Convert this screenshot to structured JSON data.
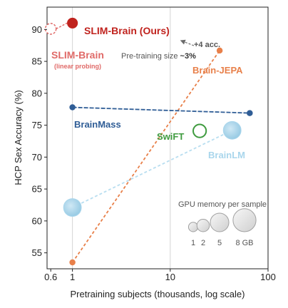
{
  "chart_data": {
    "type": "scatter",
    "xlabel": "Pretraining subjects (thousands, log scale)",
    "ylabel": "HCP Sex Accuracy (%)",
    "x_scale": "log",
    "xlim": [
      0.55,
      100
    ],
    "ylim": [
      52.5,
      93.5
    ],
    "x_ticks": [
      {
        "value": 0.6,
        "label": "0.6"
      },
      {
        "value": 1,
        "label": "1"
      },
      {
        "value": 10,
        "label": "10"
      },
      {
        "value": 100,
        "label": "100"
      }
    ],
    "y_ticks": [
      55,
      60,
      65,
      70,
      75,
      80,
      85,
      90
    ],
    "grid": "vertical",
    "series": [
      {
        "name": "SLIM-Brain (Ours)",
        "color": "#C0231E",
        "style": "filled-circle",
        "points": [
          {
            "x": 1,
            "y": 91.0,
            "gpu_gb": 1.4
          }
        ]
      },
      {
        "name": "SLIM-Brain",
        "sublabel": "(linear probing)",
        "color": "#E06A68",
        "style": "dashed-outline-circle",
        "points": [
          {
            "x": 0.6,
            "y": 90.1,
            "gpu_gb": 1.4
          }
        ]
      },
      {
        "name": "Brain-JEPA",
        "color": "#E8804A",
        "style": "line-markers",
        "line": "dashed",
        "points": [
          {
            "x": 1,
            "y": 53.5,
            "gpu_gb": 0.3
          },
          {
            "x": 32,
            "y": 86.7,
            "gpu_gb": 0.3
          }
        ]
      },
      {
        "name": "BrainMass",
        "color": "#2F5D96",
        "style": "line-markers",
        "line": "dashed",
        "points": [
          {
            "x": 1,
            "y": 77.8,
            "gpu_gb": 0.3
          },
          {
            "x": 65,
            "y": 76.9,
            "gpu_gb": 0.3
          }
        ]
      },
      {
        "name": "SwiFT",
        "color": "#3F9B3F",
        "style": "outline-circle",
        "points": [
          {
            "x": 20,
            "y": 74.1,
            "gpu_gb": 2.2
          }
        ]
      },
      {
        "name": "BrainLM",
        "color": "#A9D6EC",
        "style": "bubble-line",
        "line": "dashed",
        "points": [
          {
            "x": 1,
            "y": 62.1,
            "gpu_gb": 4.5
          },
          {
            "x": 43,
            "y": 74.2,
            "gpu_gb": 4.5
          }
        ]
      }
    ],
    "annotations": {
      "acc_gain": "+4 acc.",
      "size_prefix": "Pre-training size ",
      "size_value": "~3%"
    },
    "legend": {
      "title": "GPU memory per sample",
      "placement": "bottom-right",
      "items": [
        {
          "label": "1",
          "gb": 1
        },
        {
          "label": "2",
          "gb": 2
        },
        {
          "label": "5",
          "gb": 5
        },
        {
          "label": "8 GB",
          "gb": 8
        }
      ]
    }
  }
}
